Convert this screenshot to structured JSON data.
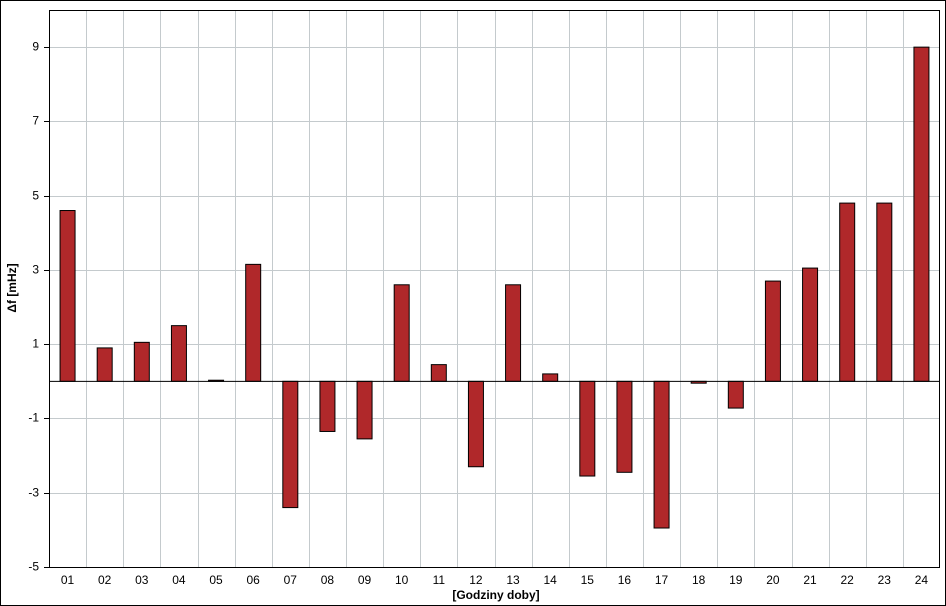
{
  "chart_data": {
    "type": "bar",
    "x_label": "[Godziny doby]",
    "y_label": "Δf [mHz]",
    "categories": [
      "01",
      "02",
      "03",
      "04",
      "05",
      "06",
      "07",
      "08",
      "09",
      "10",
      "11",
      "12",
      "13",
      "14",
      "15",
      "16",
      "17",
      "18",
      "19",
      "20",
      "21",
      "22",
      "23",
      "24"
    ],
    "values": [
      4.6,
      0.9,
      1.05,
      1.5,
      0.03,
      3.15,
      -3.4,
      -1.35,
      -1.55,
      2.6,
      0.45,
      -2.3,
      2.6,
      0.2,
      -2.55,
      -2.45,
      -3.95,
      -0.05,
      -0.72,
      2.7,
      3.05,
      4.8,
      4.8,
      9.0
    ],
    "color": "#b0282a",
    "ylim": [
      -5,
      10
    ],
    "yticks": [
      -5,
      -3,
      -1,
      1,
      3,
      5,
      7,
      9
    ],
    "grid": true
  }
}
